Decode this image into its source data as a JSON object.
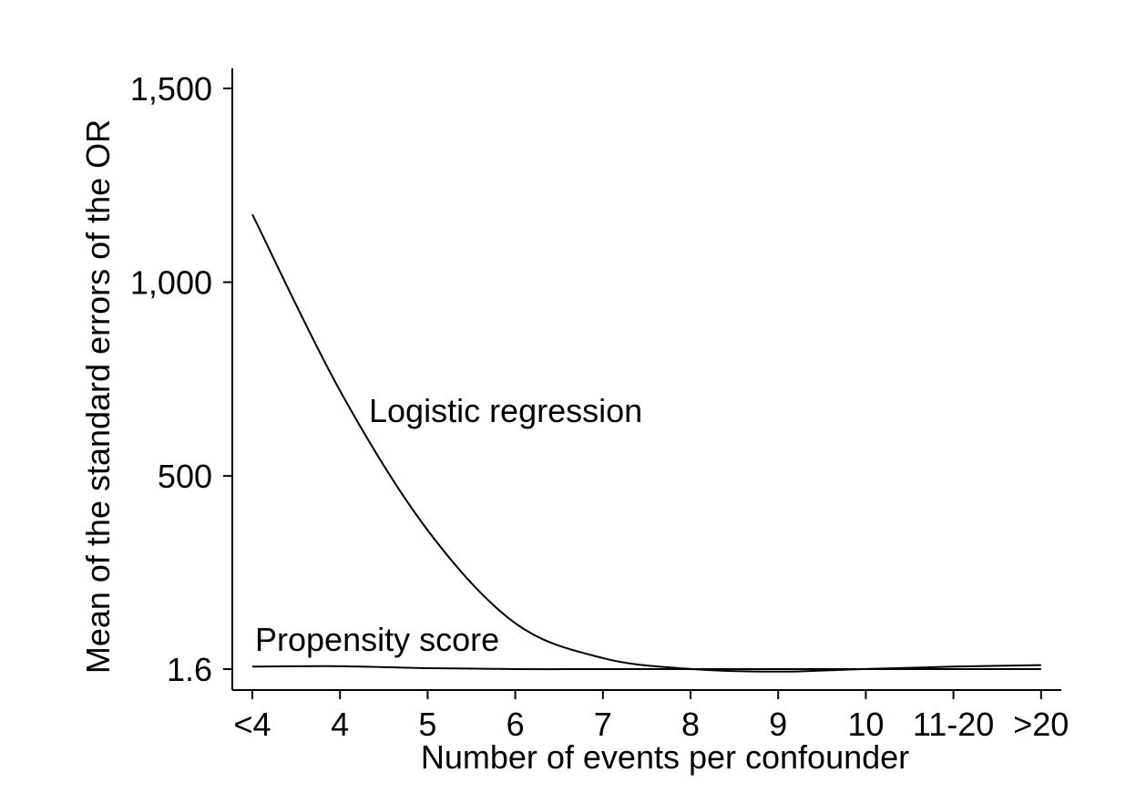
{
  "chart_data": {
    "type": "line",
    "title": "",
    "xlabel": "Number of events per confounder",
    "ylabel": "Mean of the standard errors of the OR",
    "categories": [
      "<4",
      "4",
      "5",
      "6",
      "7",
      "8",
      "9",
      "10",
      "11-20",
      ">20"
    ],
    "x_ticks": [
      "<4",
      "4",
      "5",
      "6",
      "7",
      "8",
      "9",
      "10",
      "11-20",
      ">20"
    ],
    "y_ticks": [
      {
        "value": 1.6,
        "label": "1.6"
      },
      {
        "value": 500,
        "label": "500"
      },
      {
        "value": 1000,
        "label": "1,000"
      },
      {
        "value": 1500,
        "label": "1,500"
      }
    ],
    "ylim": [
      -50,
      1560
    ],
    "grid": false,
    "legend": "none (series labeled directly on plot)",
    "series": [
      {
        "name": "Logistic regression",
        "values": [
          1175,
          720,
          360,
          120,
          30,
          2,
          -5,
          2,
          8,
          12
        ]
      },
      {
        "name": "Propensity score",
        "values": [
          8,
          9,
          4,
          1.6,
          1.6,
          1.6,
          1.6,
          1.6,
          1.6,
          1.6
        ]
      }
    ]
  }
}
